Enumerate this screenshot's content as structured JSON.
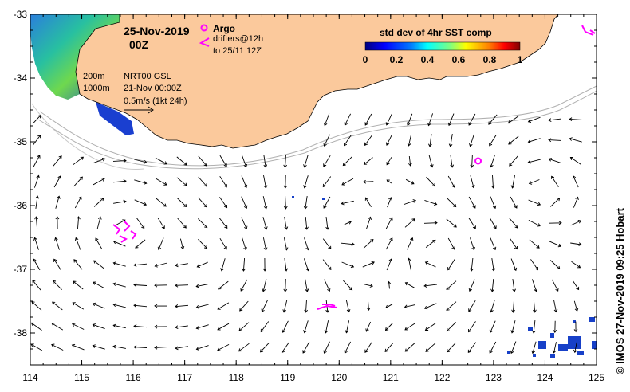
{
  "map": {
    "title_date": "25-Nov-2019",
    "title_time": "00Z",
    "lon_ticks": [
      "114",
      "115",
      "116",
      "117",
      "118",
      "119",
      "120",
      "121",
      "122",
      "123",
      "124",
      "125"
    ],
    "lat_ticks": [
      "-33",
      "-34",
      "-35",
      "-36",
      "-37",
      "-38"
    ],
    "legend": {
      "argo_label": "Argo",
      "drifter_label": "drifters@12h",
      "drifter_sub": "to 25/11 12Z",
      "isobath_200": "200m",
      "isobath_1000": "1000m",
      "model_line1": "NRT00 GSL",
      "model_line2": "21-Nov 00:00Z",
      "scale_label": "0.5m/s (1kt 24h)"
    },
    "colorbar": {
      "title": "std dev of 4hr SST comp",
      "ticks": [
        "0",
        "0.2",
        "0.4",
        "0.6",
        "0.8",
        "1"
      ],
      "colors": [
        "#00007f",
        "#0000ff",
        "#007fff",
        "#00ffff",
        "#7fff7f",
        "#ffff00",
        "#ff7f00",
        "#ff0000",
        "#7f0000"
      ]
    },
    "credit": "© IMOS 27-Nov-2019 09:25 Hobart",
    "colors": {
      "land": "#fbc99c",
      "argo": "#ff00ff",
      "drifter": "#ff00ff"
    },
    "argo_floats": [
      {
        "lon": 122.7,
        "lat": -35.3
      }
    ]
  }
}
